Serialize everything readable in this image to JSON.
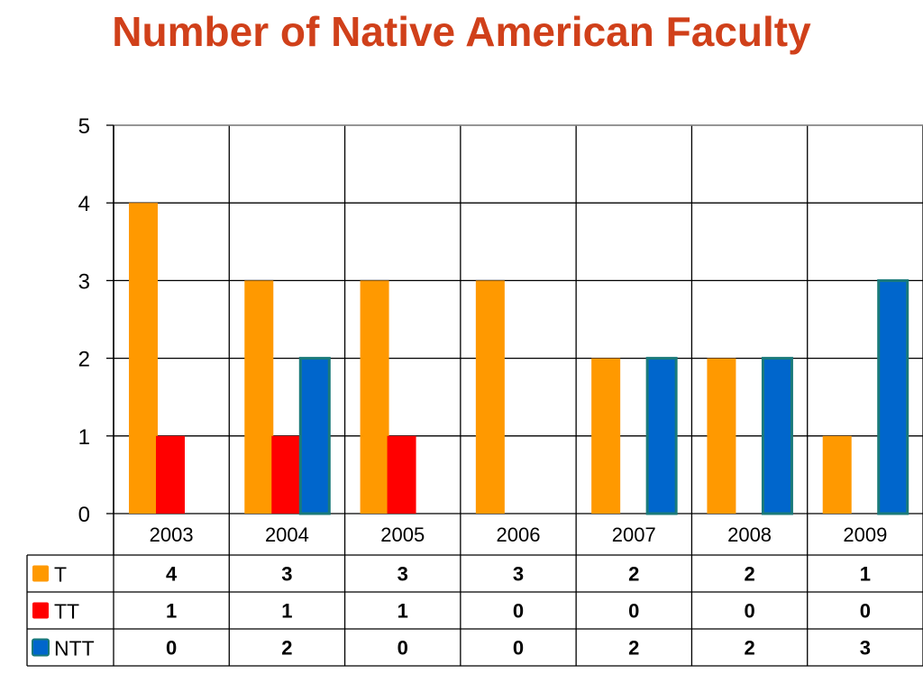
{
  "title": "Number of Native American Faculty",
  "chart_data": {
    "type": "bar",
    "title": "Number of Native American Faculty",
    "categories": [
      "2003",
      "2004",
      "2005",
      "2006",
      "2007",
      "2008",
      "2009"
    ],
    "series": [
      {
        "name": "T",
        "color": "#ff9900",
        "values": [
          4,
          3,
          3,
          3,
          2,
          2,
          1
        ]
      },
      {
        "name": "TT",
        "color": "#ff0000",
        "values": [
          1,
          1,
          1,
          0,
          0,
          0,
          0
        ]
      },
      {
        "name": "NTT",
        "color": "#0066cc",
        "values": [
          0,
          2,
          0,
          0,
          2,
          2,
          3
        ]
      }
    ],
    "yticks": [
      "0",
      "1",
      "2",
      "3",
      "4",
      "5"
    ],
    "ylim": [
      0,
      5
    ],
    "grid": true,
    "data_table": true,
    "xlabel": "",
    "ylabel": ""
  }
}
